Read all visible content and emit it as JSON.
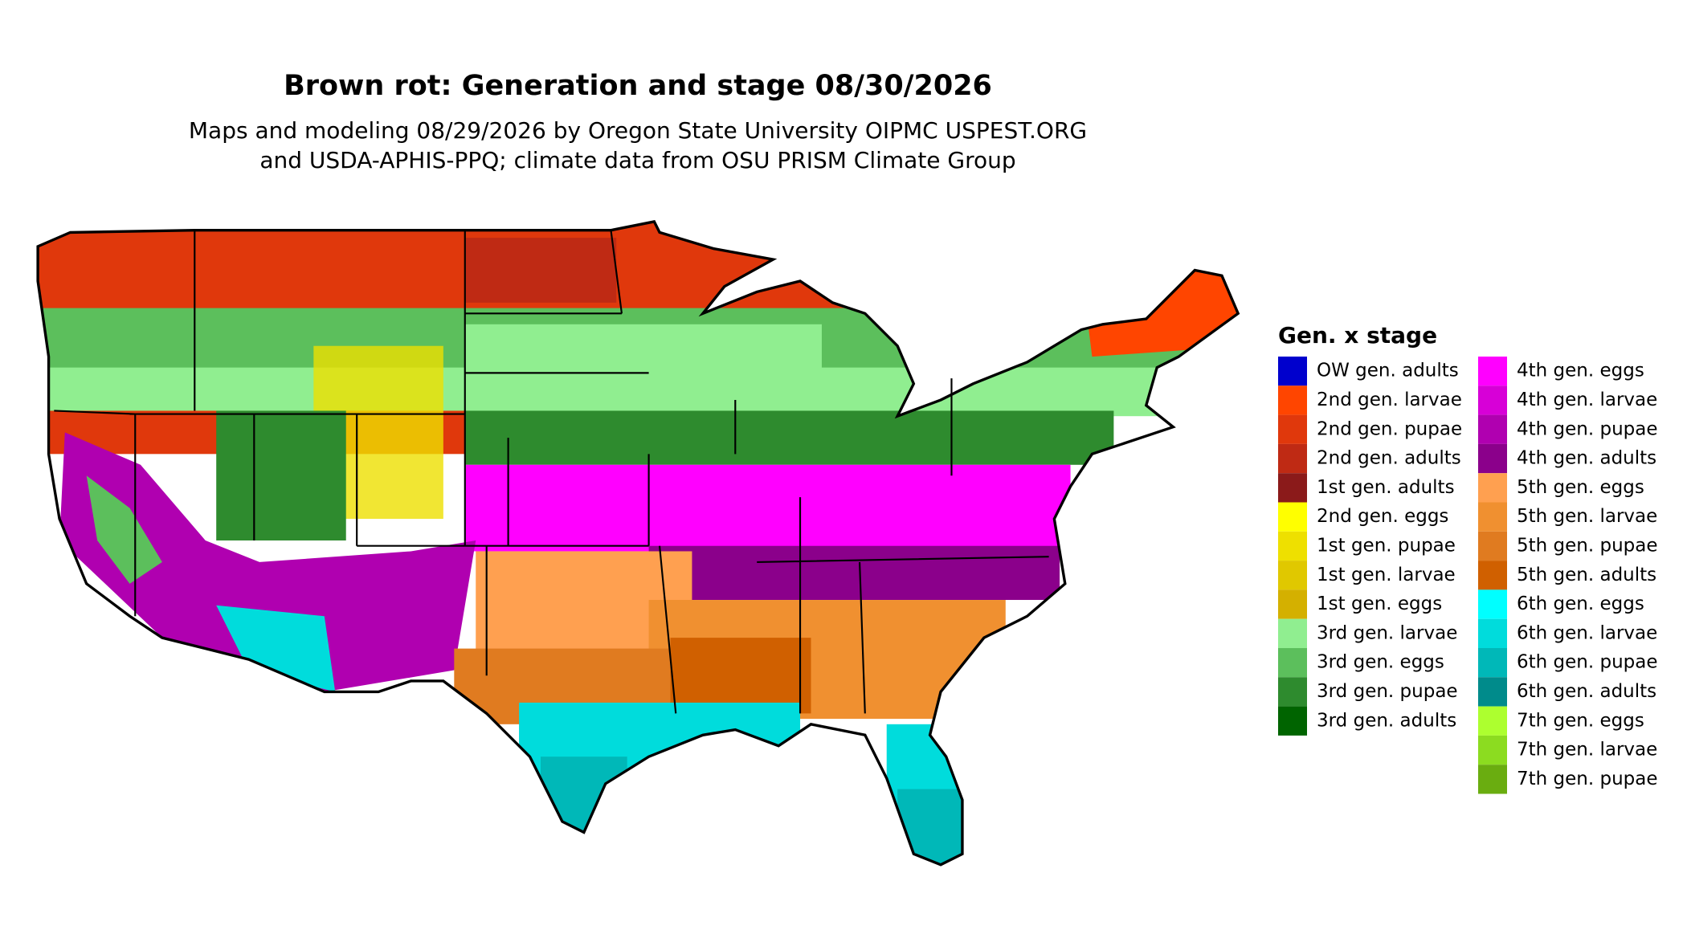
{
  "header": {
    "title": "Brown rot: Generation and stage 08/30/2026",
    "subtitle_lines": [
      "Maps and modeling 08/29/2026 by Oregon State University OIPMC USPEST.ORG",
      "and USDA-APHIS-PPQ; climate data from OSU PRISM Climate Group"
    ]
  },
  "legend": {
    "title": "Gen. x stage",
    "items": [
      {
        "label": "OW gen. adults",
        "color": "#0000cd"
      },
      {
        "label": "2nd gen. larvae",
        "color": "#ff4500"
      },
      {
        "label": "2nd gen. pupae",
        "color": "#e0380c"
      },
      {
        "label": "2nd gen. adults",
        "color": "#bf2a14"
      },
      {
        "label": "1st gen. adults",
        "color": "#8b1a1a"
      },
      {
        "label": "2nd gen. eggs",
        "color": "#ffff00"
      },
      {
        "label": "1st gen. pupae",
        "color": "#eee000"
      },
      {
        "label": "1st gen. larvae",
        "color": "#e0c800"
      },
      {
        "label": "1st gen. eggs",
        "color": "#d4b000"
      },
      {
        "label": "3rd gen. larvae",
        "color": "#90ee90"
      },
      {
        "label": "3rd gen. eggs",
        "color": "#5cbf5c"
      },
      {
        "label": "3rd gen. pupae",
        "color": "#2e8b2e"
      },
      {
        "label": "3rd gen. adults",
        "color": "#006400"
      },
      {
        "label": "4th gen. eggs",
        "color": "#ff00ff"
      },
      {
        "label": "4th gen. larvae",
        "color": "#d700d7"
      },
      {
        "label": "4th gen. pupae",
        "color": "#b000b0"
      },
      {
        "label": "4th gen. adults",
        "color": "#8b008b"
      },
      {
        "label": "5th gen. eggs",
        "color": "#ffa050"
      },
      {
        "label": "5th gen. larvae",
        "color": "#f09030"
      },
      {
        "label": "5th gen. pupae",
        "color": "#e07b20"
      },
      {
        "label": "5th gen. adults",
        "color": "#d06000"
      },
      {
        "label": "6th gen. eggs",
        "color": "#00ffff"
      },
      {
        "label": "6th gen. larvae",
        "color": "#00dcdc"
      },
      {
        "label": "6th gen. pupae",
        "color": "#00b8b8"
      },
      {
        "label": "6th gen. adults",
        "color": "#008b8b"
      },
      {
        "label": "7th gen. eggs",
        "color": "#adff2f"
      },
      {
        "label": "7th gen. larvae",
        "color": "#8cdc20"
      },
      {
        "label": "7th gen. pupae",
        "color": "#6aad10"
      }
    ]
  }
}
